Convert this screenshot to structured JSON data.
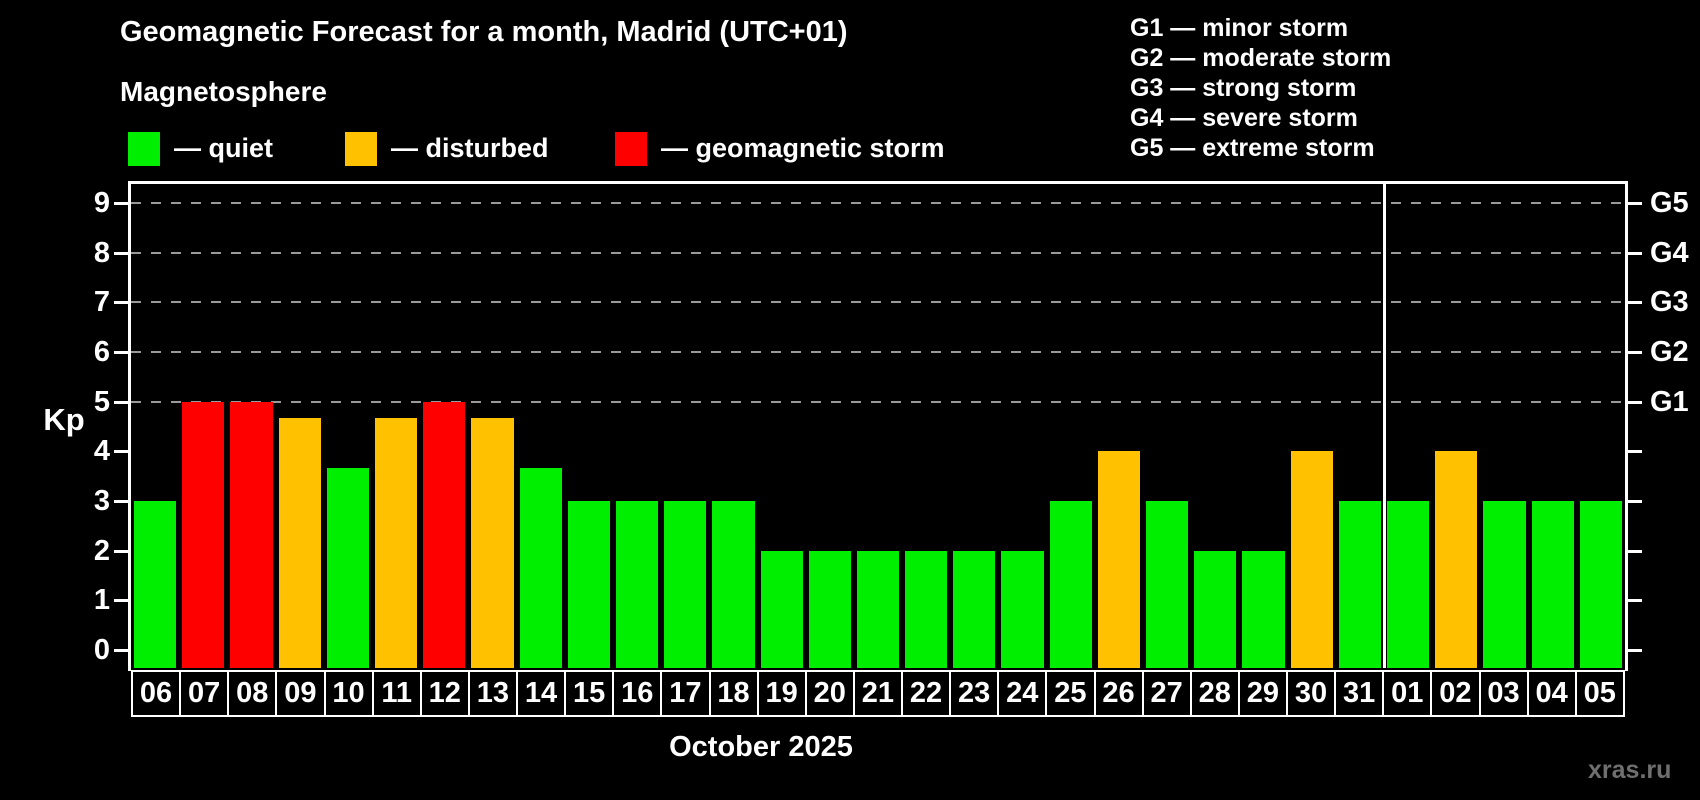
{
  "header": {
    "title": "Geomagnetic Forecast for a month, Madrid (UTC+01)",
    "subtitle": "Magnetosphere"
  },
  "legend": [
    {
      "status": "quiet",
      "label": "— quiet",
      "color": "#00ee00"
    },
    {
      "status": "disturbed",
      "label": "— disturbed",
      "color": "#ffc100"
    },
    {
      "status": "storm",
      "label": "— geomagnetic storm",
      "color": "#ff0000"
    }
  ],
  "storm_scale_legend": [
    "G1 — minor storm",
    "G2 — moderate storm",
    "G3 — strong storm",
    "G4 — severe storm",
    "G5 — extreme storm"
  ],
  "chart_data": {
    "type": "bar",
    "title": "Geomagnetic Forecast for a month, Madrid (UTC+01)",
    "ylabel": "Kp",
    "xlabel": "October 2025",
    "ylim": [
      -0.4,
      9.4
    ],
    "yticks": [
      0,
      1,
      2,
      3,
      4,
      5,
      6,
      7,
      8,
      9
    ],
    "gridlines": [
      5,
      6,
      7,
      8,
      9
    ],
    "grid_on": true,
    "right_axis": [
      {
        "kp": 5,
        "label": "G1"
      },
      {
        "kp": 6,
        "label": "G2"
      },
      {
        "kp": 7,
        "label": "G3"
      },
      {
        "kp": 8,
        "label": "G4"
      },
      {
        "kp": 9,
        "label": "G5"
      }
    ],
    "status_colors": {
      "quiet": "#00ee00",
      "disturbed": "#ffc100",
      "storm": "#ff0000"
    },
    "month_boundary_after_column": 26,
    "bars": [
      {
        "day": "06",
        "kp": 3,
        "status": "quiet"
      },
      {
        "day": "07",
        "kp": 5,
        "status": "storm"
      },
      {
        "day": "08",
        "kp": 5,
        "status": "storm"
      },
      {
        "day": "09",
        "kp": 4.67,
        "status": "disturbed"
      },
      {
        "day": "10",
        "kp": 3.67,
        "status": "quiet"
      },
      {
        "day": "11",
        "kp": 4.67,
        "status": "disturbed"
      },
      {
        "day": "12",
        "kp": 5,
        "status": "storm"
      },
      {
        "day": "13",
        "kp": 4.67,
        "status": "disturbed"
      },
      {
        "day": "14",
        "kp": 3.67,
        "status": "quiet"
      },
      {
        "day": "15",
        "kp": 3,
        "status": "quiet"
      },
      {
        "day": "16",
        "kp": 3,
        "status": "quiet"
      },
      {
        "day": "17",
        "kp": 3,
        "status": "quiet"
      },
      {
        "day": "18",
        "kp": 3,
        "status": "quiet"
      },
      {
        "day": "19",
        "kp": 2,
        "status": "quiet"
      },
      {
        "day": "20",
        "kp": 2,
        "status": "quiet"
      },
      {
        "day": "21",
        "kp": 2,
        "status": "quiet"
      },
      {
        "day": "22",
        "kp": 2,
        "status": "quiet"
      },
      {
        "day": "23",
        "kp": 2,
        "status": "quiet"
      },
      {
        "day": "24",
        "kp": 2,
        "status": "quiet"
      },
      {
        "day": "25",
        "kp": 3,
        "status": "quiet"
      },
      {
        "day": "26",
        "kp": 4,
        "status": "disturbed"
      },
      {
        "day": "27",
        "kp": 3,
        "status": "quiet"
      },
      {
        "day": "28",
        "kp": 2,
        "status": "quiet"
      },
      {
        "day": "29",
        "kp": 2,
        "status": "quiet"
      },
      {
        "day": "30",
        "kp": 4,
        "status": "disturbed"
      },
      {
        "day": "31",
        "kp": 3,
        "status": "quiet"
      },
      {
        "day": "01",
        "kp": 3,
        "status": "quiet"
      },
      {
        "day": "02",
        "kp": 4,
        "status": "disturbed"
      },
      {
        "day": "03",
        "kp": 3,
        "status": "quiet"
      },
      {
        "day": "04",
        "kp": 3,
        "status": "quiet"
      },
      {
        "day": "05",
        "kp": 3,
        "status": "quiet"
      }
    ]
  },
  "footer": {
    "month_label": "October 2025",
    "watermark": "xras.ru"
  },
  "colors": {
    "background": "#000000",
    "axis": "#ffffff",
    "grid": "#9a9a9a",
    "watermark": "#6f6f6f"
  }
}
